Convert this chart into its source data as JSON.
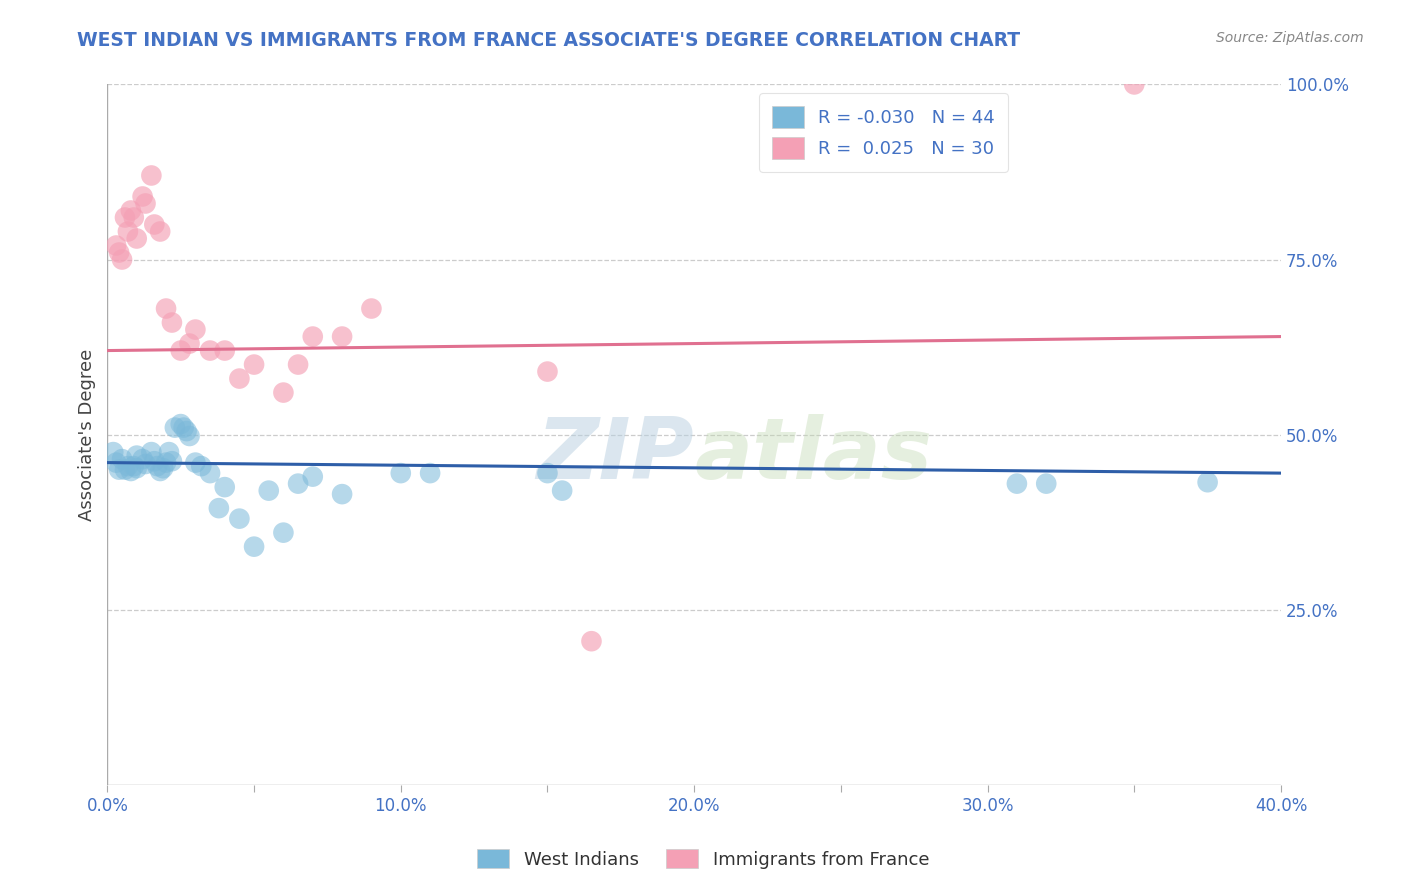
{
  "title": "WEST INDIAN VS IMMIGRANTS FROM FRANCE ASSOCIATE'S DEGREE CORRELATION CHART",
  "source_text": "Source: ZipAtlas.com",
  "ylabel": "Associate's Degree",
  "xlim": [
    0.0,
    0.4
  ],
  "ylim": [
    0.0,
    1.0
  ],
  "xtick_labels": [
    "0.0%",
    "",
    "10.0%",
    "",
    "20.0%",
    "",
    "30.0%",
    "",
    "40.0%"
  ],
  "xtick_vals": [
    0.0,
    0.05,
    0.1,
    0.15,
    0.2,
    0.25,
    0.3,
    0.35,
    0.4
  ],
  "ytick_labels_right": [
    "25.0%",
    "50.0%",
    "75.0%",
    "100.0%"
  ],
  "ytick_vals_right": [
    0.25,
    0.5,
    0.75,
    1.0
  ],
  "blue_color": "#7ab8d9",
  "pink_color": "#f4a0b5",
  "blue_R": -0.03,
  "blue_N": 44,
  "pink_R": 0.025,
  "pink_N": 30,
  "legend_label_blue": "West Indians",
  "legend_label_pink": "Immigrants from France",
  "watermark_part1": "ZIP",
  "watermark_part2": "atlas",
  "background_color": "#ffffff",
  "grid_color": "#cccccc",
  "title_color": "#4472c4",
  "axis_color": "#4472c4",
  "source_color": "#888888",
  "blue_line_color": "#2e5ea8",
  "pink_line_color": "#e07090",
  "blue_scatter_x": [
    0.002,
    0.003,
    0.004,
    0.005,
    0.006,
    0.007,
    0.008,
    0.009,
    0.01,
    0.01,
    0.012,
    0.013,
    0.015,
    0.016,
    0.017,
    0.018,
    0.019,
    0.02,
    0.021,
    0.022,
    0.023,
    0.025,
    0.026,
    0.027,
    0.028,
    0.03,
    0.032,
    0.035,
    0.038,
    0.04,
    0.045,
    0.05,
    0.055,
    0.06,
    0.065,
    0.07,
    0.08,
    0.1,
    0.11,
    0.15,
    0.155,
    0.31,
    0.32,
    0.375
  ],
  "blue_scatter_y": [
    0.475,
    0.46,
    0.45,
    0.465,
    0.45,
    0.455,
    0.448,
    0.455,
    0.47,
    0.452,
    0.465,
    0.458,
    0.475,
    0.462,
    0.455,
    0.448,
    0.452,
    0.46,
    0.475,
    0.462,
    0.51,
    0.515,
    0.51,
    0.505,
    0.498,
    0.46,
    0.455,
    0.445,
    0.395,
    0.425,
    0.38,
    0.34,
    0.42,
    0.36,
    0.43,
    0.44,
    0.415,
    0.445,
    0.445,
    0.445,
    0.42,
    0.43,
    0.43,
    0.432
  ],
  "pink_scatter_x": [
    0.003,
    0.004,
    0.005,
    0.006,
    0.007,
    0.008,
    0.009,
    0.01,
    0.012,
    0.013,
    0.015,
    0.016,
    0.018,
    0.02,
    0.022,
    0.025,
    0.028,
    0.03,
    0.035,
    0.04,
    0.045,
    0.05,
    0.06,
    0.065,
    0.07,
    0.08,
    0.09,
    0.15,
    0.165,
    0.35
  ],
  "pink_scatter_y": [
    0.77,
    0.76,
    0.75,
    0.81,
    0.79,
    0.82,
    0.81,
    0.78,
    0.84,
    0.83,
    0.87,
    0.8,
    0.79,
    0.68,
    0.66,
    0.62,
    0.63,
    0.65,
    0.62,
    0.62,
    0.58,
    0.6,
    0.56,
    0.6,
    0.64,
    0.64,
    0.68,
    0.59,
    0.205,
    1.0
  ],
  "blue_trend_y": [
    0.46,
    0.445
  ],
  "pink_trend_y": [
    0.62,
    0.64
  ]
}
